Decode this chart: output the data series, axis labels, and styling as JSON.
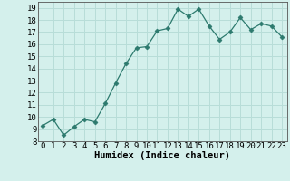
{
  "x": [
    0,
    1,
    2,
    3,
    4,
    5,
    6,
    7,
    8,
    9,
    10,
    11,
    12,
    13,
    14,
    15,
    16,
    17,
    18,
    19,
    20,
    21,
    22,
    23
  ],
  "y": [
    9.3,
    9.8,
    8.5,
    9.2,
    9.8,
    9.6,
    11.1,
    12.8,
    14.4,
    15.7,
    15.8,
    17.1,
    17.3,
    18.9,
    18.3,
    18.9,
    17.5,
    16.4,
    17.0,
    18.2,
    17.2,
    17.7,
    17.5,
    16.6
  ],
  "line_color": "#2d7a6e",
  "marker": "D",
  "marker_size": 2.5,
  "background_color": "#d4f0ec",
  "grid_color": "#b8ddd8",
  "xlabel": "Humidex (Indice chaleur)",
  "xlim": [
    -0.5,
    23.5
  ],
  "ylim": [
    8,
    19.5
  ],
  "yticks": [
    8,
    9,
    10,
    11,
    12,
    13,
    14,
    15,
    16,
    17,
    18,
    19
  ],
  "xticks": [
    0,
    1,
    2,
    3,
    4,
    5,
    6,
    7,
    8,
    9,
    10,
    11,
    12,
    13,
    14,
    15,
    16,
    17,
    18,
    19,
    20,
    21,
    22,
    23
  ],
  "xlabel_fontsize": 7.5,
  "tick_fontsize": 6.5,
  "linewidth": 0.9
}
